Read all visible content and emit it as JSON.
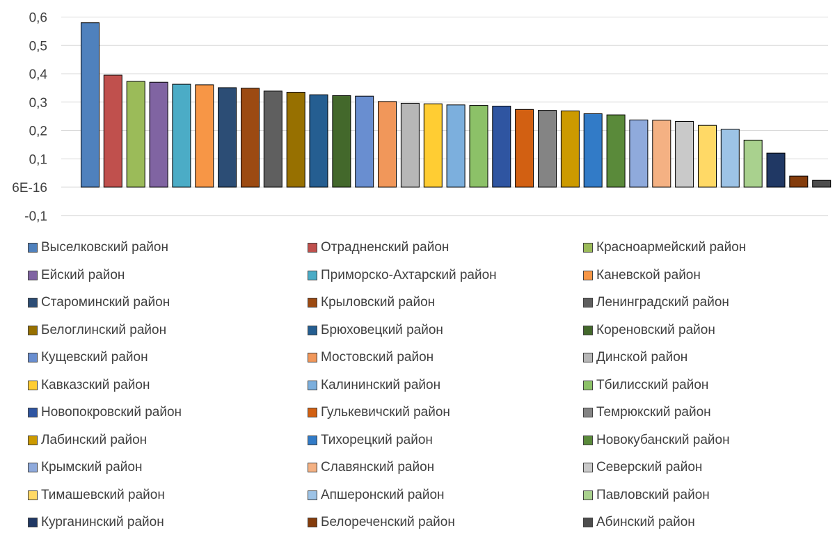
{
  "chart_data": {
    "type": "bar",
    "y_ticks": [
      "-0,1",
      "6E-16",
      "0,1",
      "0,2",
      "0,3",
      "0,4",
      "0,5",
      "0,6"
    ],
    "ylim": [
      -0.1,
      0.6
    ],
    "grid": true,
    "legend_position": "bottom",
    "series": [
      {
        "name": "Выселковский район",
        "value": 0.58,
        "color": "#4F81BD"
      },
      {
        "name": "Отрадненский район",
        "value": 0.395,
        "color": "#C0504D"
      },
      {
        "name": "Красноармейский район",
        "value": 0.373,
        "color": "#9BBB59"
      },
      {
        "name": "Ейский район",
        "value": 0.37,
        "color": "#8064A2"
      },
      {
        "name": "Приморско-Ахтарский район",
        "value": 0.363,
        "color": "#4BACC6"
      },
      {
        "name": "Каневской район",
        "value": 0.361,
        "color": "#F79646"
      },
      {
        "name": "Староминский район",
        "value": 0.351,
        "color": "#2C4D75"
      },
      {
        "name": "Крыловский район",
        "value": 0.349,
        "color": "#9C4A12"
      },
      {
        "name": "Ленинградский район",
        "value": 0.339,
        "color": "#5F5F5F"
      },
      {
        "name": "Белоглинский район",
        "value": 0.335,
        "color": "#977000"
      },
      {
        "name": "Брюховецкий район",
        "value": 0.326,
        "color": "#255E91"
      },
      {
        "name": "Кореновский район",
        "value": 0.323,
        "color": "#43682B"
      },
      {
        "name": "Кущевский район",
        "value": 0.321,
        "color": "#698ED0"
      },
      {
        "name": "Мостовский район",
        "value": 0.302,
        "color": "#F1975A"
      },
      {
        "name": "Динской район",
        "value": 0.296,
        "color": "#B7B7B7"
      },
      {
        "name": "Кавказский район",
        "value": 0.294,
        "color": "#FFCD33"
      },
      {
        "name": "Калининский район",
        "value": 0.29,
        "color": "#7CAFDD"
      },
      {
        "name": "Тбилисский район",
        "value": 0.288,
        "color": "#8CC168"
      },
      {
        "name": "Новопокровский район",
        "value": 0.286,
        "color": "#2F55A1"
      },
      {
        "name": "Гулькевичский район",
        "value": 0.274,
        "color": "#D26012"
      },
      {
        "name": "Темрюкский район",
        "value": 0.271,
        "color": "#848484"
      },
      {
        "name": "Лабинский район",
        "value": 0.269,
        "color": "#CC9A00"
      },
      {
        "name": "Тихорецкий район",
        "value": 0.259,
        "color": "#327BC7"
      },
      {
        "name": "Новокубанский район",
        "value": 0.255,
        "color": "#5A8A3A"
      },
      {
        "name": "Крымский район",
        "value": 0.237,
        "color": "#8FAADC"
      },
      {
        "name": "Славянский район",
        "value": 0.236,
        "color": "#F4B183"
      },
      {
        "name": "Северский район",
        "value": 0.232,
        "color": "#C9C9C9"
      },
      {
        "name": "Тимашевский район",
        "value": 0.218,
        "color": "#FFD966"
      },
      {
        "name": "Апшеронский район",
        "value": 0.204,
        "color": "#9DC3E6"
      },
      {
        "name": "Павловский район",
        "value": 0.166,
        "color": "#A9D18E"
      },
      {
        "name": "Курганинский район",
        "value": 0.12,
        "color": "#203864"
      },
      {
        "name": "Белореченский район",
        "value": 0.039,
        "color": "#843C0C"
      },
      {
        "name": "Абинский район",
        "value": 0.024,
        "color": "#4D4D4D"
      }
    ]
  }
}
